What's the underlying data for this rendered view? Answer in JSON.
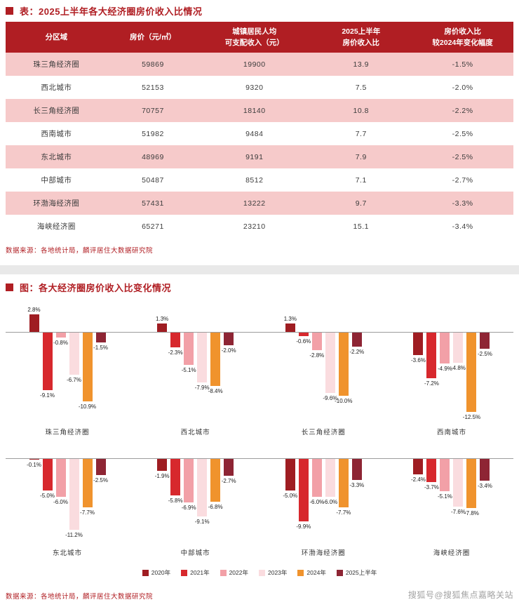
{
  "page": {
    "table_title": "表：2025上半年各大经济圈房价收入比情况",
    "chart_title": "图：各大经济圈房价收入比变化情况",
    "source": "数据来源：各地统计局，麟评居住大数据研究院",
    "watermark": "搜狐号@搜狐焦点嘉略关站"
  },
  "colors": {
    "accent_red": "#b01e23",
    "row_pink": "#f6caca",
    "divider_gray": "#e9e9e9"
  },
  "table": {
    "headers": [
      "分区域",
      "房价（元/㎡）",
      "城镇居民人均\n可支配收入（元）",
      "2025上半年\n房价收入比",
      "房价收入比\n较2024年变化幅度"
    ],
    "rows": [
      [
        "珠三角经济圈",
        "59869",
        "19900",
        "13.9",
        "-1.5%"
      ],
      [
        "西北城市",
        "52153",
        "9320",
        "7.5",
        "-2.0%"
      ],
      [
        "长三角经济圈",
        "70757",
        "18140",
        "10.8",
        "-2.2%"
      ],
      [
        "西南城市",
        "51982",
        "9484",
        "7.7",
        "-2.5%"
      ],
      [
        "东北城市",
        "48969",
        "9191",
        "7.9",
        "-2.5%"
      ],
      [
        "中部城市",
        "50487",
        "8512",
        "7.1",
        "-2.7%"
      ],
      [
        "环渤海经济圈",
        "57431",
        "13222",
        "9.7",
        "-3.3%"
      ],
      [
        "海峡经济圈",
        "65271",
        "23210",
        "15.1",
        "-3.4%"
      ]
    ]
  },
  "chart_data": {
    "type": "bar",
    "title": "图：各大经济圈房价收入比变化情况",
    "unit": "%",
    "legend_position": "bottom",
    "series_labels": [
      "2020年",
      "2021年",
      "2022年",
      "2023年",
      "2024年",
      "2025上半年"
    ],
    "series_colors": [
      "#9f1d22",
      "#d7282d",
      "#f2a0a7",
      "#fadcdf",
      "#f0932d",
      "#8e2534"
    ],
    "rows": [
      {
        "groups": [
          {
            "name": "珠三角经济圈",
            "values": [
              2.8,
              -9.1,
              -0.8,
              -6.7,
              -10.9,
              -1.5
            ]
          },
          {
            "name": "西北城市",
            "values": [
              1.3,
              -2.3,
              -5.1,
              -7.9,
              -8.4,
              -2.0
            ]
          },
          {
            "name": "长三角经济圈",
            "values": [
              1.3,
              -0.6,
              -2.8,
              -9.6,
              -10.0,
              -2.2
            ]
          },
          {
            "name": "西南城市",
            "values": [
              -3.6,
              -7.2,
              -4.9,
              -4.8,
              -12.5,
              -2.5
            ]
          }
        ]
      },
      {
        "groups": [
          {
            "name": "东北城市",
            "values": [
              -0.1,
              -5.0,
              -6.0,
              -11.2,
              -7.7,
              -2.5
            ]
          },
          {
            "name": "中部城市",
            "values": [
              -1.9,
              -5.8,
              -6.9,
              -9.1,
              -6.8,
              -2.7
            ]
          },
          {
            "name": "环渤海经济圈",
            "values": [
              -5.0,
              -9.9,
              -6.0,
              -6.0,
              -7.7,
              -3.3
            ]
          },
          {
            "name": "海峡经济圈",
            "values": [
              -2.4,
              -3.7,
              -5.1,
              -7.6,
              -7.8,
              -3.4
            ]
          }
        ]
      }
    ]
  }
}
